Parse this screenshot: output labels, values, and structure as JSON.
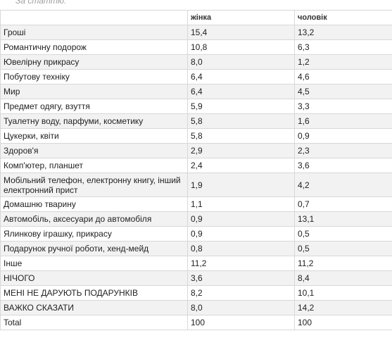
{
  "caption": "За статтю:",
  "table": {
    "headers": [
      "",
      "жінка",
      "чоловік"
    ],
    "rows": [
      {
        "label": "Гроші",
        "female": "15,4",
        "male": "13,2"
      },
      {
        "label": "Романтичну подорож",
        "female": "10,8",
        "male": "6,3"
      },
      {
        "label": "Ювелірну прикрасу",
        "female": "8,0",
        "male": "1,2"
      },
      {
        "label": "Побутову техніку",
        "female": "6,4",
        "male": "4,6"
      },
      {
        "label": "Мир",
        "female": "6,4",
        "male": "4,5"
      },
      {
        "label": "Предмет одягу, взуття",
        "female": "5,9",
        "male": "3,3"
      },
      {
        "label": "Туалетну воду, парфуми, косметику",
        "female": "5,8",
        "male": "1,6"
      },
      {
        "label": "Цукерки, квіти",
        "female": "5,8",
        "male": "0,9"
      },
      {
        "label": "Здоров'я",
        "female": "2,9",
        "male": "2,3"
      },
      {
        "label": "Комп'ютер, планшет",
        "female": "2,4",
        "male": "3,6"
      },
      {
        "label": "Мобільний телефон, електронну книгу, інший електронний прист",
        "female": "1,9",
        "male": "4,2"
      },
      {
        "label": "Домашню тварину",
        "female": "1,1",
        "male": "0,7"
      },
      {
        "label": "Автомобіль, аксесуари до автомобіля",
        "female": "0,9",
        "male": "13,1"
      },
      {
        "label": "Ялинкову іграшку, прикрасу",
        "female": "0,9",
        "male": "0,5"
      },
      {
        "label": "Подарунок ручної роботи, хенд-мейд",
        "female": "0,8",
        "male": "0,5"
      },
      {
        "label": "Інше",
        "female": "11,2",
        "male": "11,2"
      },
      {
        "label": "НІЧОГО",
        "female": "3,6",
        "male": "8,4"
      },
      {
        "label": "МЕНІ НЕ ДАРУЮТЬ ПОДАРУНКІВ",
        "female": "8,2",
        "male": "10,1"
      },
      {
        "label": "ВАЖКО СКАЗАТИ",
        "female": "8,0",
        "male": "14,2"
      },
      {
        "label": "Total",
        "female": "100",
        "male": "100"
      }
    ]
  }
}
